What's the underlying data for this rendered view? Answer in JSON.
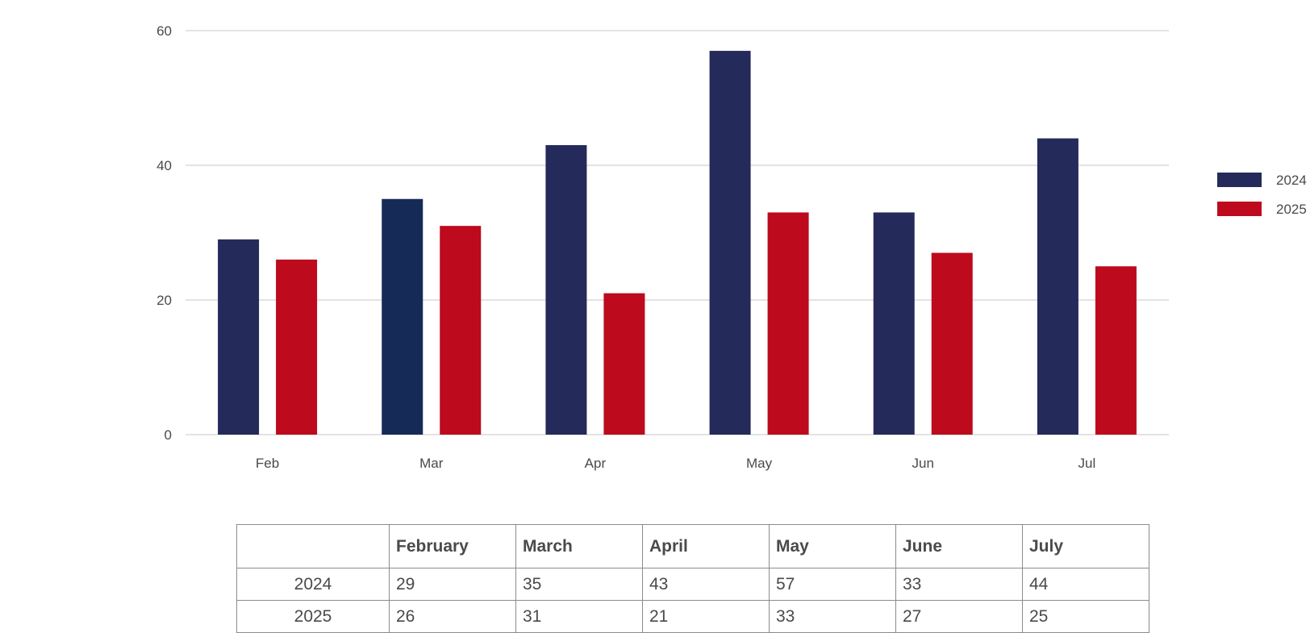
{
  "chart_data": {
    "type": "bar",
    "categories": [
      "Feb",
      "Mar",
      "Apr",
      "May",
      "Jun",
      "Jul"
    ],
    "series": [
      {
        "name": "2024",
        "values": [
          29,
          35,
          43,
          57,
          33,
          44
        ],
        "color": "#242b5a",
        "alt_colors": {
          "1": "#152a57"
        }
      },
      {
        "name": "2025",
        "values": [
          26,
          31,
          21,
          33,
          27,
          25
        ],
        "color": "#bd0a1d"
      }
    ],
    "ylim": [
      0,
      60
    ],
    "yticks": [
      0,
      20,
      40,
      60
    ],
    "grid": true,
    "legend_position": "right",
    "gridline_color": "#e3e3e3",
    "xlabel": "",
    "ylabel": "",
    "title": ""
  },
  "table": {
    "corner": "",
    "headers": [
      "February",
      "March",
      "April",
      "May",
      "June",
      "July"
    ],
    "rows": [
      {
        "label": "2024",
        "cells": [
          "29",
          "35",
          "43",
          "57",
          "33",
          "44"
        ]
      },
      {
        "label": "2025",
        "cells": [
          "26",
          "31",
          "21",
          "33",
          "27",
          "25"
        ]
      }
    ]
  }
}
